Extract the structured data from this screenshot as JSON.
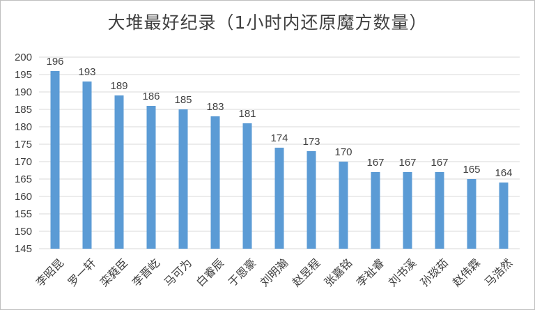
{
  "chart_data": {
    "type": "bar",
    "title": "大堆最好纪录（1小时内还原魔方数量）",
    "xlabel": "",
    "ylabel": "",
    "categories": [
      "李昭昆",
      "罗一轩",
      "栾蕤臣",
      "李晋屹",
      "马可为",
      "白睿辰",
      "于恩豪",
      "刘明瀚",
      "赵昱程",
      "张嘉铭",
      "李祉睿",
      "刘书溪",
      "孙琰茹",
      "赵伟霖",
      "马浩然"
    ],
    "values": [
      196,
      193,
      189,
      186,
      185,
      183,
      181,
      174,
      173,
      170,
      167,
      167,
      167,
      165,
      164
    ],
    "ylim": [
      145,
      200
    ],
    "yticks": [
      145,
      150,
      155,
      160,
      165,
      170,
      175,
      180,
      185,
      190,
      195,
      200
    ],
    "grid": true,
    "legend": "none",
    "bar_color": "#5b9bd5",
    "grid_color": "#d9d9d9",
    "text_color": "#404040"
  }
}
